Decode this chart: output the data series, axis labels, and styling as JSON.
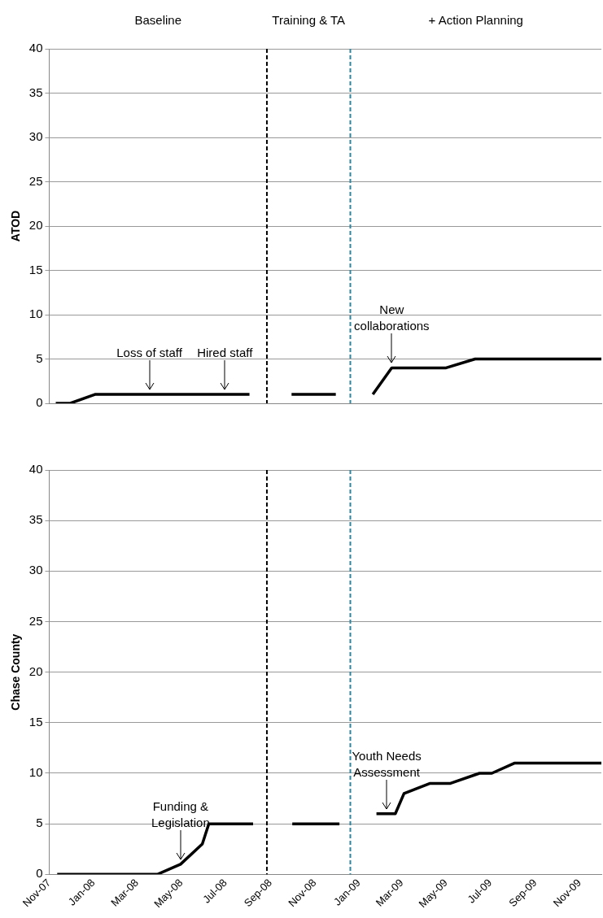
{
  "chart_data": [
    {
      "type": "line",
      "ylabel": "ATOD",
      "xlim": [
        "2007-11-01",
        "2009-12-01"
      ],
      "ylim": [
        0,
        40
      ],
      "yticks": [
        0,
        5,
        10,
        15,
        20,
        25,
        30,
        35,
        40
      ],
      "tick_labels": "y",
      "grid": "y",
      "legend": false,
      "marker": "none",
      "line_style": "solid",
      "series": [
        {
          "color": "#000000",
          "x": [
            "2007-11-10",
            "2007-11-30",
            "2008-01-03",
            "2008-08-03",
            "2008-09-01",
            "2008-09-30",
            "2008-11-30",
            "2008-12-20",
            "2009-01-20",
            "2009-02-15",
            "2009-05-01",
            "2009-06-10",
            "2009-12-01"
          ],
          "values": [
            0,
            0,
            1,
            1,
            null,
            1,
            1,
            null,
            1,
            4,
            4,
            5,
            5
          ]
        }
      ],
      "ref_lines": [
        {
          "axis": "x",
          "value": "2008-08-27",
          "color": "#000000",
          "line_style": "dashed"
        },
        {
          "axis": "x",
          "value": "2008-12-20",
          "color": "#31859c",
          "line_style": "dashed"
        }
      ],
      "annotations": [
        "Baseline",
        "Training & TA",
        "+ Action Planning",
        {
          "text": "Loss of staff",
          "x": "2008-03-18",
          "y": 1
        },
        {
          "text": "Hired staff",
          "x": "2008-06-30",
          "y": 1
        },
        {
          "text": "New collaborations",
          "x": "2009-02-15",
          "y": 4
        }
      ]
    },
    {
      "type": "line",
      "ylabel": "Chase County",
      "xlim": [
        "2007-11-01",
        "2009-12-01"
      ],
      "ylim": [
        0,
        40
      ],
      "yticks": [
        0,
        5,
        10,
        15,
        20,
        25,
        30,
        35,
        40
      ],
      "xticks": [
        {
          "value": "2007-11-01",
          "label": "Nov-07"
        },
        {
          "value": "2008-01-01",
          "label": "Jan-08"
        },
        {
          "value": "2008-03-01",
          "label": "Mar-08"
        },
        {
          "value": "2008-05-01",
          "label": "May-08"
        },
        {
          "value": "2008-07-01",
          "label": "Jul-08"
        },
        {
          "value": "2008-09-01",
          "label": "Sep-08"
        },
        {
          "value": "2008-11-01",
          "label": "Nov-08"
        },
        {
          "value": "2009-01-01",
          "label": "Jan-09"
        },
        {
          "value": "2009-03-01",
          "label": "Mar-09"
        },
        {
          "value": "2009-05-01",
          "label": "May-09"
        },
        {
          "value": "2009-07-01",
          "label": "Jul-09"
        },
        {
          "value": "2009-09-01",
          "label": "Sep-09"
        },
        {
          "value": "2009-11-01",
          "label": "Nov-09"
        }
      ],
      "grid": "y",
      "legend": false,
      "marker": "none",
      "line_style": "solid",
      "series": [
        {
          "color": "#000000",
          "x": [
            "2007-11-12",
            "2008-03-29",
            "2008-04-30",
            "2008-05-30",
            "2008-06-08",
            "2008-08-08",
            "2008-09-01",
            "2008-10-01",
            "2008-12-05",
            "2008-12-20",
            "2009-01-25",
            "2009-02-20",
            "2009-03-04",
            "2009-04-09",
            "2009-05-07",
            "2009-06-16",
            "2009-07-03",
            "2009-08-03",
            "2009-12-01"
          ],
          "values": [
            0,
            0,
            1,
            3,
            5,
            5,
            null,
            5,
            5,
            null,
            6,
            6,
            8,
            9,
            9,
            10,
            10,
            11,
            11
          ]
        }
      ],
      "ref_lines": [
        {
          "axis": "x",
          "value": "2008-08-27",
          "color": "#000000",
          "line_style": "dashed"
        },
        {
          "axis": "x",
          "value": "2008-12-20",
          "color": "#31859c",
          "line_style": "dashed"
        }
      ],
      "annotations": [
        {
          "text": "Funding & Legislation",
          "x": "2008-04-30",
          "y": 1
        },
        {
          "text": "Youth Needs Assessment",
          "x": "2009-02-08",
          "y": 6
        }
      ]
    }
  ]
}
